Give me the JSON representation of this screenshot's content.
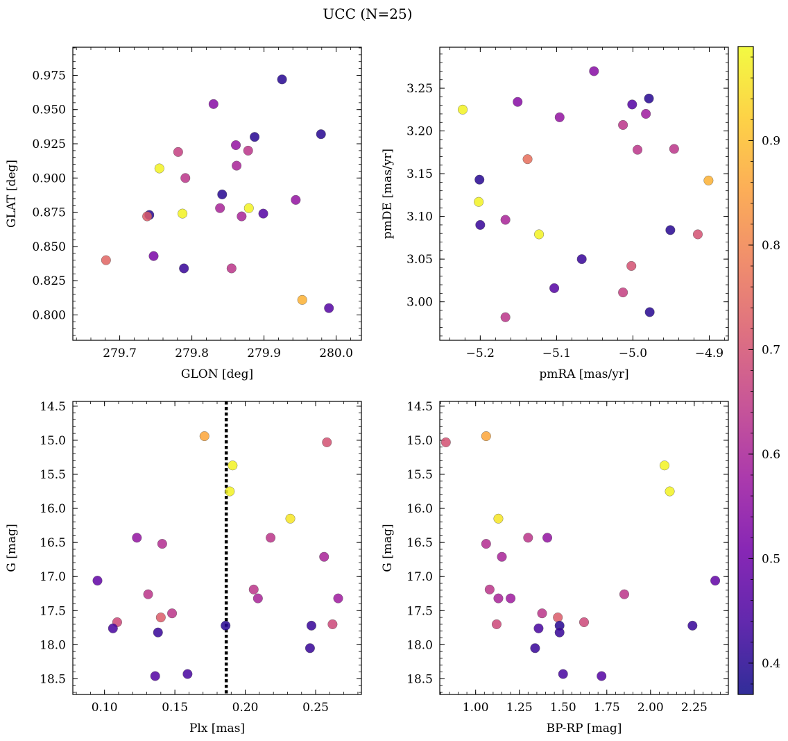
{
  "figure": {
    "title": "UCC (N=25)"
  },
  "colorbar": {
    "colormap": "plasma",
    "range": [
      0.37,
      0.99
    ],
    "ticks": [
      "0.4",
      "0.5",
      "0.6",
      "0.7",
      "0.8",
      "0.9"
    ]
  },
  "colors": {
    "plasma_stops": [
      "#0d0887",
      "#46039f",
      "#7201a8",
      "#9c179e",
      "#bd3786",
      "#d8576b",
      "#ed7953",
      "#fb9f3a",
      "#fdca26",
      "#f0f921"
    ],
    "marker_edge": "#555555",
    "reference_line": "#000000"
  },
  "chart_data": [
    {
      "type": "scatter",
      "xlabel": "GLON [deg]",
      "ylabel": "GLAT [deg]",
      "xlim": [
        279.635,
        280.035
      ],
      "ylim": [
        0.7815,
        0.9955
      ],
      "xticks": [
        "279.7",
        "279.8",
        "279.9",
        "280.0"
      ],
      "yticks": [
        "0.800",
        "0.825",
        "0.850",
        "0.875",
        "0.900",
        "0.925",
        "0.950",
        "0.975"
      ],
      "x": [
        279.925,
        279.979,
        279.887,
        279.842,
        279.899,
        279.741,
        279.789,
        279.83,
        279.861,
        279.878,
        279.781,
        279.862,
        279.791,
        279.944,
        279.839,
        279.869,
        279.738,
        279.755,
        279.787,
        279.879,
        279.747,
        279.855,
        279.681,
        279.953,
        279.99
      ],
      "y": [
        0.972,
        0.932,
        0.93,
        0.888,
        0.874,
        0.873,
        0.834,
        0.954,
        0.924,
        0.92,
        0.919,
        0.909,
        0.9,
        0.884,
        0.878,
        0.872,
        0.872,
        0.907,
        0.874,
        0.878,
        0.843,
        0.834,
        0.84,
        0.811,
        0.805
      ],
      "color": [
        0.4,
        0.4,
        0.4,
        0.4,
        0.46,
        0.4,
        0.42,
        0.54,
        0.56,
        0.64,
        0.66,
        0.6,
        0.64,
        0.56,
        0.6,
        0.6,
        0.72,
        0.98,
        0.98,
        0.98,
        0.52,
        0.64,
        0.74,
        0.88,
        0.46
      ]
    },
    {
      "type": "scatter",
      "xlabel": "pmRA [mas/yr]",
      "ylabel": "pmDE [mas/yr]",
      "xlim": [
        -5.253,
        -4.875
      ],
      "ylim": [
        2.955,
        3.298
      ],
      "xticks": [
        "−5.2",
        "−5.1",
        "−5.0",
        "−4.9"
      ],
      "yticks": [
        "3.00",
        "3.05",
        "3.10",
        "3.15",
        "3.20",
        "3.25"
      ],
      "x": [
        -5.223,
        -5.051,
        -5.151,
        -4.979,
        -5.001,
        -5.096,
        -4.983,
        -5.013,
        -4.994,
        -4.946,
        -5.138,
        -5.201,
        -4.901,
        -5.202,
        -5.167,
        -5.2,
        -5.123,
        -4.951,
        -4.915,
        -5.067,
        -5.002,
        -5.103,
        -5.013,
        -4.978,
        -5.167
      ],
      "y": [
        3.225,
        3.27,
        3.234,
        3.238,
        3.231,
        3.216,
        3.22,
        3.207,
        3.178,
        3.179,
        3.167,
        3.143,
        3.142,
        3.117,
        3.096,
        3.09,
        3.079,
        3.084,
        3.079,
        3.05,
        3.042,
        3.016,
        3.011,
        2.988,
        2.982
      ],
      "color": [
        0.98,
        0.54,
        0.54,
        0.4,
        0.46,
        0.56,
        0.58,
        0.64,
        0.64,
        0.64,
        0.76,
        0.4,
        0.88,
        0.98,
        0.6,
        0.42,
        0.98,
        0.4,
        0.7,
        0.42,
        0.7,
        0.46,
        0.66,
        0.4,
        0.64
      ]
    },
    {
      "type": "scatter",
      "xlabel": "Plx [mas]",
      "ylabel": "G [mag]",
      "xlim": [
        0.0775,
        0.2825
      ],
      "ylim": [
        18.73,
        14.43
      ],
      "y_inverted": true,
      "xticks": [
        "0.10",
        "0.15",
        "0.20",
        "0.25"
      ],
      "yticks": [
        "14.5",
        "15.0",
        "15.5",
        "16.0",
        "16.5",
        "17.0",
        "17.5",
        "18.0",
        "18.5"
      ],
      "reference_line": {
        "axis": "x",
        "value": 0.1865,
        "style": "dotted"
      },
      "x": [
        0.171,
        0.258,
        0.191,
        0.189,
        0.232,
        0.123,
        0.218,
        0.141,
        0.256,
        0.095,
        0.131,
        0.206,
        0.209,
        0.266,
        0.148,
        0.14,
        0.109,
        0.262,
        0.106,
        0.186,
        0.247,
        0.138,
        0.246,
        0.136,
        0.159
      ],
      "y": [
        14.94,
        15.03,
        15.37,
        15.75,
        16.15,
        16.43,
        16.43,
        16.52,
        16.71,
        17.06,
        17.26,
        17.19,
        17.32,
        17.32,
        17.54,
        17.6,
        17.67,
        17.7,
        17.76,
        17.72,
        17.72,
        17.82,
        18.05,
        18.46,
        18.43
      ],
      "color": [
        0.86,
        0.7,
        0.98,
        0.98,
        0.96,
        0.56,
        0.64,
        0.62,
        0.6,
        0.48,
        0.64,
        0.64,
        0.6,
        0.58,
        0.64,
        0.72,
        0.68,
        0.68,
        0.44,
        0.4,
        0.42,
        0.42,
        0.42,
        0.46,
        0.44
      ]
    },
    {
      "type": "scatter",
      "xlabel": "BP-RP [mag]",
      "ylabel": "G [mag]",
      "xlim": [
        0.795,
        2.445
      ],
      "ylim": [
        18.73,
        14.43
      ],
      "y_inverted": true,
      "xticks": [
        "1.00",
        "1.25",
        "1.50",
        "1.75",
        "2.00",
        "2.25"
      ],
      "yticks": [
        "14.5",
        "15.0",
        "15.5",
        "16.0",
        "16.5",
        "17.0",
        "17.5",
        "18.0",
        "18.5"
      ],
      "x": [
        0.83,
        1.06,
        2.08,
        2.11,
        1.13,
        1.3,
        1.41,
        1.06,
        1.15,
        2.37,
        1.08,
        1.85,
        1.13,
        1.2,
        1.38,
        1.47,
        1.62,
        1.12,
        1.36,
        1.48,
        2.24,
        1.48,
        1.34,
        1.72,
        1.5
      ],
      "y": [
        15.03,
        14.94,
        15.37,
        15.75,
        16.15,
        16.43,
        16.43,
        16.52,
        16.71,
        17.06,
        17.19,
        17.26,
        17.32,
        17.32,
        17.54,
        17.6,
        17.67,
        17.7,
        17.76,
        17.72,
        17.72,
        17.82,
        18.05,
        18.46,
        18.43
      ],
      "color": [
        0.7,
        0.86,
        0.98,
        0.98,
        0.96,
        0.64,
        0.56,
        0.62,
        0.6,
        0.48,
        0.64,
        0.64,
        0.6,
        0.58,
        0.64,
        0.72,
        0.68,
        0.68,
        0.44,
        0.4,
        0.42,
        0.42,
        0.42,
        0.46,
        0.44
      ]
    }
  ]
}
